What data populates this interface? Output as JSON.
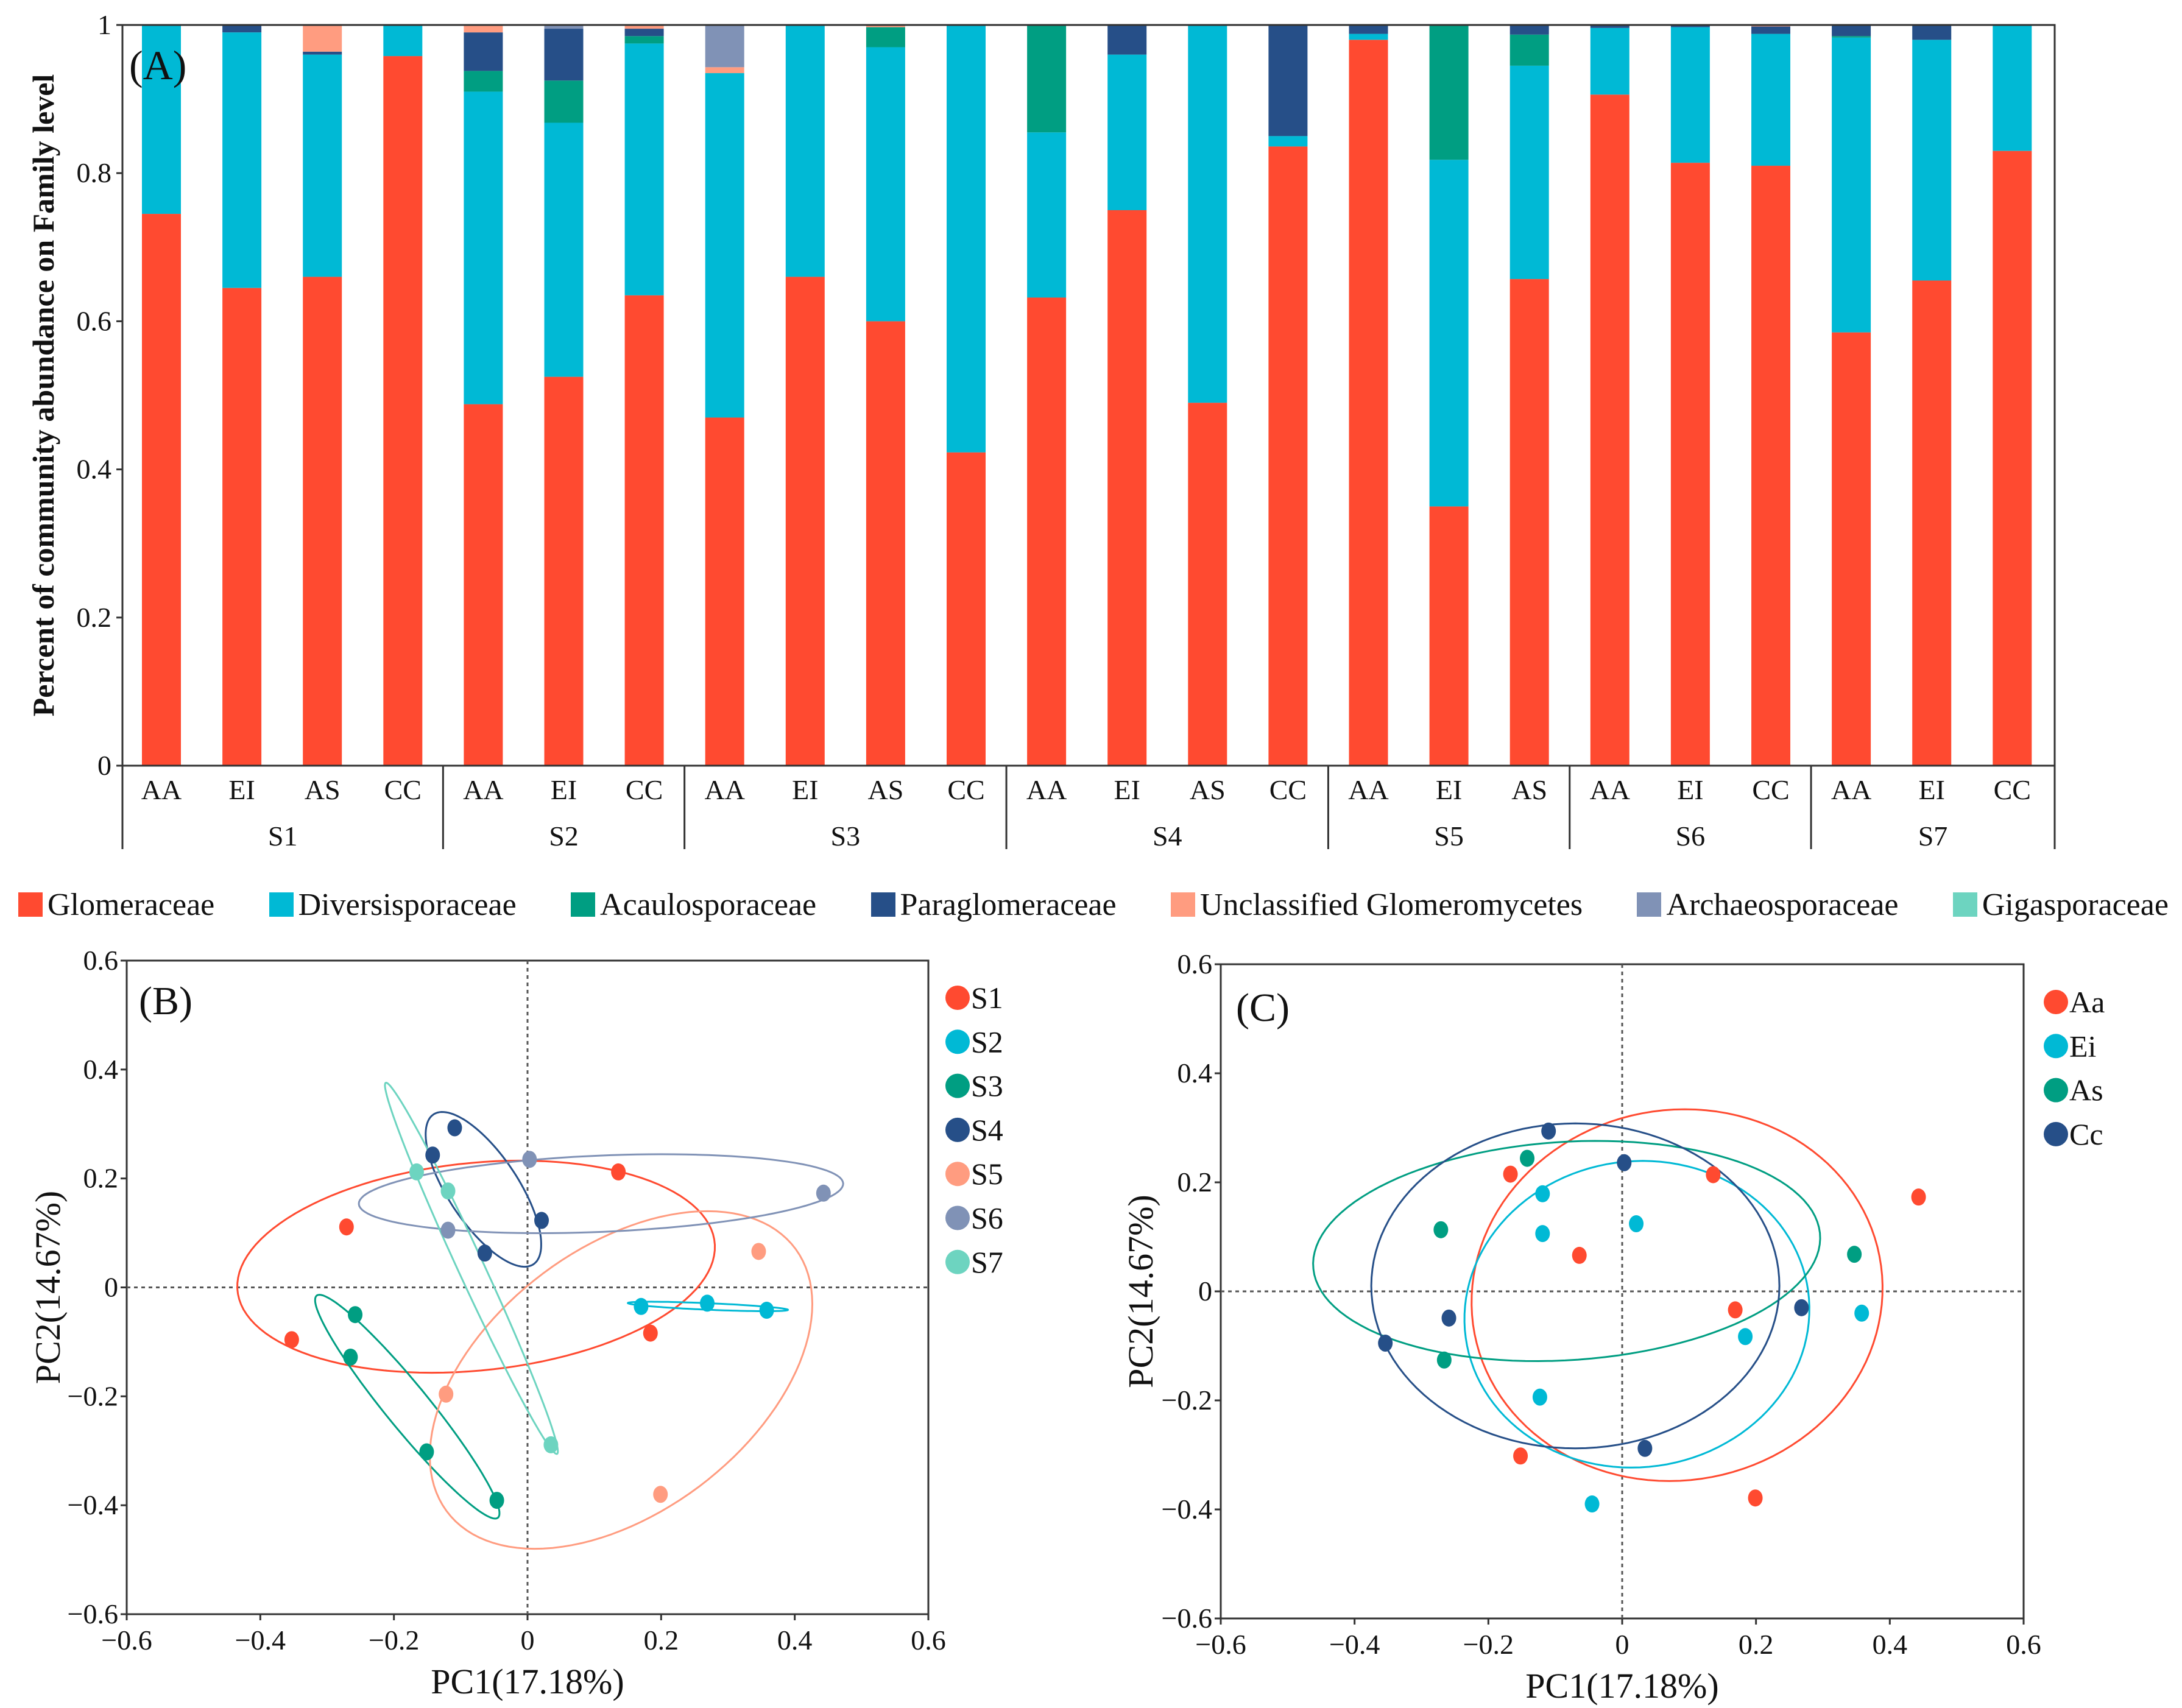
{
  "chart_data": [
    {
      "type": "bar",
      "stacked": true,
      "panel_label": "(A)",
      "ylabel": "Percent of community abundance on Family level",
      "ylim": [
        0,
        1
      ],
      "yticks": [
        0,
        0.2,
        0.4,
        0.6,
        0.8,
        1
      ],
      "ytick_labels": [
        "0",
        "0.2",
        "0.4",
        "0.6",
        "0.8",
        "1"
      ],
      "groups": [
        {
          "name": "S1",
          "categories": [
            "AA",
            "EI",
            "AS",
            "CC"
          ]
        },
        {
          "name": "S2",
          "categories": [
            "AA",
            "EI",
            "CC"
          ]
        },
        {
          "name": "S3",
          "categories": [
            "AA",
            "EI",
            "AS",
            "CC"
          ]
        },
        {
          "name": "S4",
          "categories": [
            "AA",
            "EI",
            "AS",
            "CC"
          ]
        },
        {
          "name": "S5",
          "categories": [
            "AA",
            "EI",
            "AS"
          ]
        },
        {
          "name": "S6",
          "categories": [
            "AA",
            "EI",
            "CC"
          ]
        },
        {
          "name": "S7",
          "categories": [
            "AA",
            "EI",
            "CC"
          ]
        }
      ],
      "series": [
        {
          "name": "Glomeraceae",
          "color": "#FF4A30",
          "values": [
            0.745,
            0.645,
            0.66,
            0.958,
            0.488,
            0.525,
            0.635,
            0.47,
            0.66,
            0.6,
            0.423,
            0.632,
            0.75,
            0.49,
            0.836,
            0.98,
            0.35,
            0.657,
            0.906,
            0.814,
            0.81,
            0.585,
            0.655,
            0.83
          ]
        },
        {
          "name": "Diversisporaceae",
          "color": "#00B9D5",
          "values": [
            0.255,
            0.345,
            0.3,
            0.042,
            0.422,
            0.343,
            0.34,
            0.465,
            0.34,
            0.37,
            0.577,
            0.223,
            0.21,
            0.51,
            0.014,
            0.008,
            0.468,
            0.288,
            0.09,
            0.183,
            0.178,
            0.398,
            0.325,
            0.17
          ]
        },
        {
          "name": "Acaulosporaceae",
          "color": "#009E82",
          "values": [
            0,
            0,
            0,
            0,
            0.028,
            0.057,
            0.01,
            0,
            0,
            0.027,
            0,
            0.145,
            0,
            0,
            0,
            0,
            0.182,
            0.042,
            0,
            0,
            0,
            0.002,
            0,
            0
          ]
        },
        {
          "name": "Paraglomeraceae",
          "color": "#264F88",
          "values": [
            0,
            0.01,
            0.004,
            0,
            0.052,
            0.07,
            0.01,
            0,
            0,
            0,
            0,
            0,
            0.04,
            0,
            0.15,
            0.012,
            0,
            0.013,
            0.004,
            0.003,
            0.01,
            0.015,
            0.02,
            0
          ]
        },
        {
          "name": "Unclassified Glomeromycetes",
          "color": "#FF9C80",
          "values": [
            0,
            0,
            0.036,
            0,
            0.01,
            0,
            0.005,
            0.008,
            0,
            0.003,
            0,
            0,
            0,
            0,
            0,
            0,
            0,
            0,
            0,
            0,
            0.002,
            0,
            0,
            0
          ]
        },
        {
          "name": "Archaeosporaceae",
          "color": "#8092B6",
          "values": [
            0,
            0,
            0,
            0,
            0,
            0.005,
            0,
            0.057,
            0,
            0,
            0,
            0,
            0,
            0,
            0,
            0,
            0,
            0,
            0,
            0,
            0,
            0,
            0,
            0
          ]
        },
        {
          "name": "Gigasporaceae",
          "color": "#6DD4C0",
          "values": [
            0,
            0,
            0,
            0,
            0,
            0,
            0,
            0,
            0,
            0,
            0,
            0,
            0,
            0,
            0,
            0,
            0,
            0,
            0,
            0,
            0,
            0,
            0,
            0
          ]
        }
      ]
    },
    {
      "type": "scatter",
      "panel_label": "(B)",
      "xlabel": "PC1(17.18%)",
      "ylabel": "PC2(14.67%)",
      "xlim": [
        -0.6,
        0.6
      ],
      "ylim": [
        -0.6,
        0.6
      ],
      "ticks": [
        -0.6,
        -0.4,
        -0.2,
        0,
        0.2,
        0.4,
        0.6
      ],
      "tick_labels": [
        "−0.6",
        "−0.4",
        "−0.2",
        "0",
        "0.2",
        "0.4",
        "0.6"
      ],
      "series": [
        {
          "name": "S1",
          "color": "#FF4A30",
          "points": [
            [
              -0.271,
              0.111
            ],
            [
              0.136,
              0.212
            ],
            [
              -0.353,
              -0.096
            ],
            [
              0.184,
              -0.084
            ]
          ],
          "ellipse": {
            "center": [
              -0.077,
              0.038
            ],
            "a": 0.36,
            "b": 0.19,
            "angle": 8
          }
        },
        {
          "name": "S2",
          "color": "#00B9D5",
          "points": [
            [
              0.17,
              -0.035
            ],
            [
              0.269,
              -0.029
            ],
            [
              0.358,
              -0.042
            ]
          ],
          "ellipse": {
            "center": [
              0.27,
              -0.035
            ],
            "a": 0.12,
            "b": 0.006,
            "angle": -3
          }
        },
        {
          "name": "S3",
          "color": "#009E82",
          "points": [
            [
              -0.258,
              -0.05
            ],
            [
              -0.265,
              -0.128
            ],
            [
              -0.151,
              -0.302
            ],
            [
              -0.046,
              -0.391
            ]
          ],
          "ellipse": {
            "center": [
              -0.18,
              -0.219
            ],
            "a": 0.245,
            "b": 0.035,
            "angle": -56.6
          }
        },
        {
          "name": "S4",
          "color": "#264F88",
          "points": [
            [
              -0.109,
              0.293
            ],
            [
              -0.142,
              0.243
            ],
            [
              0.021,
              0.123
            ],
            [
              -0.064,
              0.063
            ]
          ],
          "ellipse": {
            "center": [
              -0.066,
              0.18
            ],
            "a": 0.157,
            "b": 0.055,
            "angle": -63
          }
        },
        {
          "name": "S5",
          "color": "#FF9C80",
          "points": [
            [
              0.346,
              0.066
            ],
            [
              -0.122,
              -0.196
            ],
            [
              0.199,
              -0.38
            ]
          ],
          "ellipse": {
            "center": [
              0.14,
              -0.17
            ],
            "a": 0.36,
            "b": 0.22,
            "angle": 50
          }
        },
        {
          "name": "S6",
          "color": "#8092B6",
          "points": [
            [
              0.003,
              0.235
            ],
            [
              0.443,
              0.173
            ],
            [
              -0.119,
              0.105
            ]
          ],
          "ellipse": {
            "center": [
              0.11,
              0.172
            ],
            "a": 0.363,
            "b": 0.07,
            "angle": 3
          }
        },
        {
          "name": "S7",
          "color": "#6DD4C0",
          "points": [
            [
              -0.166,
              0.212
            ],
            [
              -0.119,
              0.177
            ],
            [
              0.035,
              -0.289
            ]
          ],
          "ellipse": {
            "center": [
              -0.084,
              0.035
            ],
            "a": 0.364,
            "b": 0.02,
            "angle": -69.4
          }
        }
      ]
    },
    {
      "type": "scatter",
      "panel_label": "(C)",
      "xlabel": "PC1(17.18%)",
      "ylabel": "PC2(14.67%)",
      "xlim": [
        -0.6,
        0.6
      ],
      "ylim": [
        -0.6,
        0.6
      ],
      "ticks": [
        -0.6,
        -0.4,
        -0.2,
        0,
        0.2,
        0.4,
        0.6
      ],
      "tick_labels": [
        "−0.6",
        "−0.4",
        "−0.2",
        "0",
        "0.2",
        "0.4",
        "0.6"
      ],
      "series": [
        {
          "name": "Aa",
          "color": "#FF4A30",
          "points": [
            [
              -0.167,
              0.215
            ],
            [
              0.136,
              0.214
            ],
            [
              0.443,
              0.173
            ],
            [
              -0.064,
              0.066
            ],
            [
              0.169,
              -0.034
            ],
            [
              -0.152,
              -0.302
            ],
            [
              0.199,
              -0.379
            ]
          ],
          "ellipse": {
            "center": [
              0.082,
              -0.007
            ],
            "a": 0.342,
            "b": 0.306,
            "angle": 80
          }
        },
        {
          "name": "Ei",
          "color": "#00B9D5",
          "points": [
            [
              -0.119,
              0.179
            ],
            [
              0.021,
              0.124
            ],
            [
              -0.119,
              0.106
            ],
            [
              0.184,
              -0.083
            ],
            [
              0.358,
              -0.04
            ],
            [
              -0.123,
              -0.194
            ],
            [
              -0.045,
              -0.39
            ]
          ],
          "ellipse": {
            "center": [
              0.022,
              -0.042
            ],
            "a": 0.282,
            "b": 0.257,
            "angle": 80
          }
        },
        {
          "name": "As",
          "color": "#009E82",
          "points": [
            [
              -0.142,
              0.244
            ],
            [
              -0.271,
              0.113
            ],
            [
              0.347,
              0.068
            ],
            [
              -0.266,
              -0.126
            ]
          ],
          "ellipse": {
            "center": [
              -0.083,
              0.074
            ],
            "a": 0.38,
            "b": 0.2,
            "angle": 5
          }
        },
        {
          "name": "Cc",
          "color": "#264F88",
          "points": [
            [
              -0.11,
              0.294
            ],
            [
              0.003,
              0.236
            ],
            [
              -0.259,
              -0.049
            ],
            [
              -0.354,
              -0.095
            ],
            [
              0.268,
              -0.03
            ],
            [
              0.034,
              -0.288
            ]
          ],
          "ellipse": {
            "center": [
              -0.07,
              0.01
            ],
            "a": 0.305,
            "b": 0.298,
            "angle": 0
          }
        }
      ]
    }
  ]
}
